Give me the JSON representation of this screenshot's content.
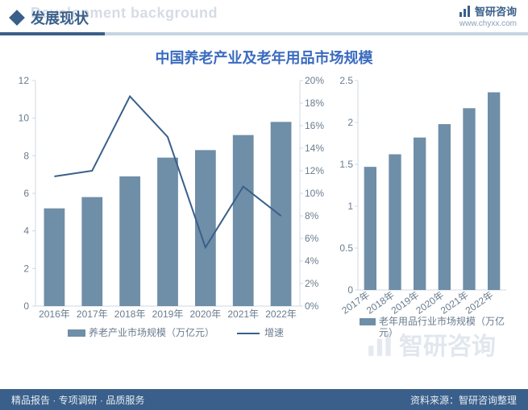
{
  "header": {
    "title_cn": "发展现状",
    "title_ghost": "Development background",
    "brand_name": "智研咨询",
    "brand_url": "www.chyxx.com"
  },
  "chart_title": "中国养老产业及老年用品市场规模",
  "colors": {
    "brand": "#3a5f8a",
    "brand_light": "#c7d4e2",
    "title_blue": "#3a6bbf",
    "bar_fill": "#6f8ea8",
    "line_stroke": "#3a5f8a",
    "axis_text": "#6a7c8e",
    "tick": "#d0d8e2",
    "bg": "#ffffff",
    "ghost": "#d5dce5",
    "footer_bg": "#3a5f8a",
    "footer_text": "#e6edf5"
  },
  "left_chart": {
    "type": "bar+line",
    "categories": [
      "2016年",
      "2017年",
      "2018年",
      "2019年",
      "2020年",
      "2021年",
      "2022年"
    ],
    "bar_series_name": "养老产业市场规模（万亿元）",
    "bar_values": [
      5.2,
      5.8,
      6.9,
      7.9,
      8.3,
      9.1,
      9.8
    ],
    "line_series_name": "增速",
    "line_values_pct": [
      11.5,
      12.0,
      18.6,
      15.0,
      5.2,
      10.6,
      8.0
    ],
    "y_left": {
      "min": 0,
      "max": 12,
      "step": 2
    },
    "y_right": {
      "min": 0,
      "max": 20,
      "step": 2,
      "format": "%"
    },
    "bar_width": 0.55
  },
  "right_chart": {
    "type": "bar",
    "categories": [
      "2017年",
      "2018年",
      "2019年",
      "2020年",
      "2021年",
      "2022年"
    ],
    "series_name": "老年用品行业市场规模（万亿元）",
    "values": [
      1.47,
      1.62,
      1.82,
      1.98,
      2.17,
      2.36
    ],
    "y": {
      "min": 0,
      "max": 2.5,
      "step": 0.5
    },
    "bar_width": 0.5
  },
  "footer": {
    "left": "精品报告 · 专项调研 · 品质服务",
    "right": "资料来源：智研咨询整理"
  },
  "watermark": "智研咨询"
}
